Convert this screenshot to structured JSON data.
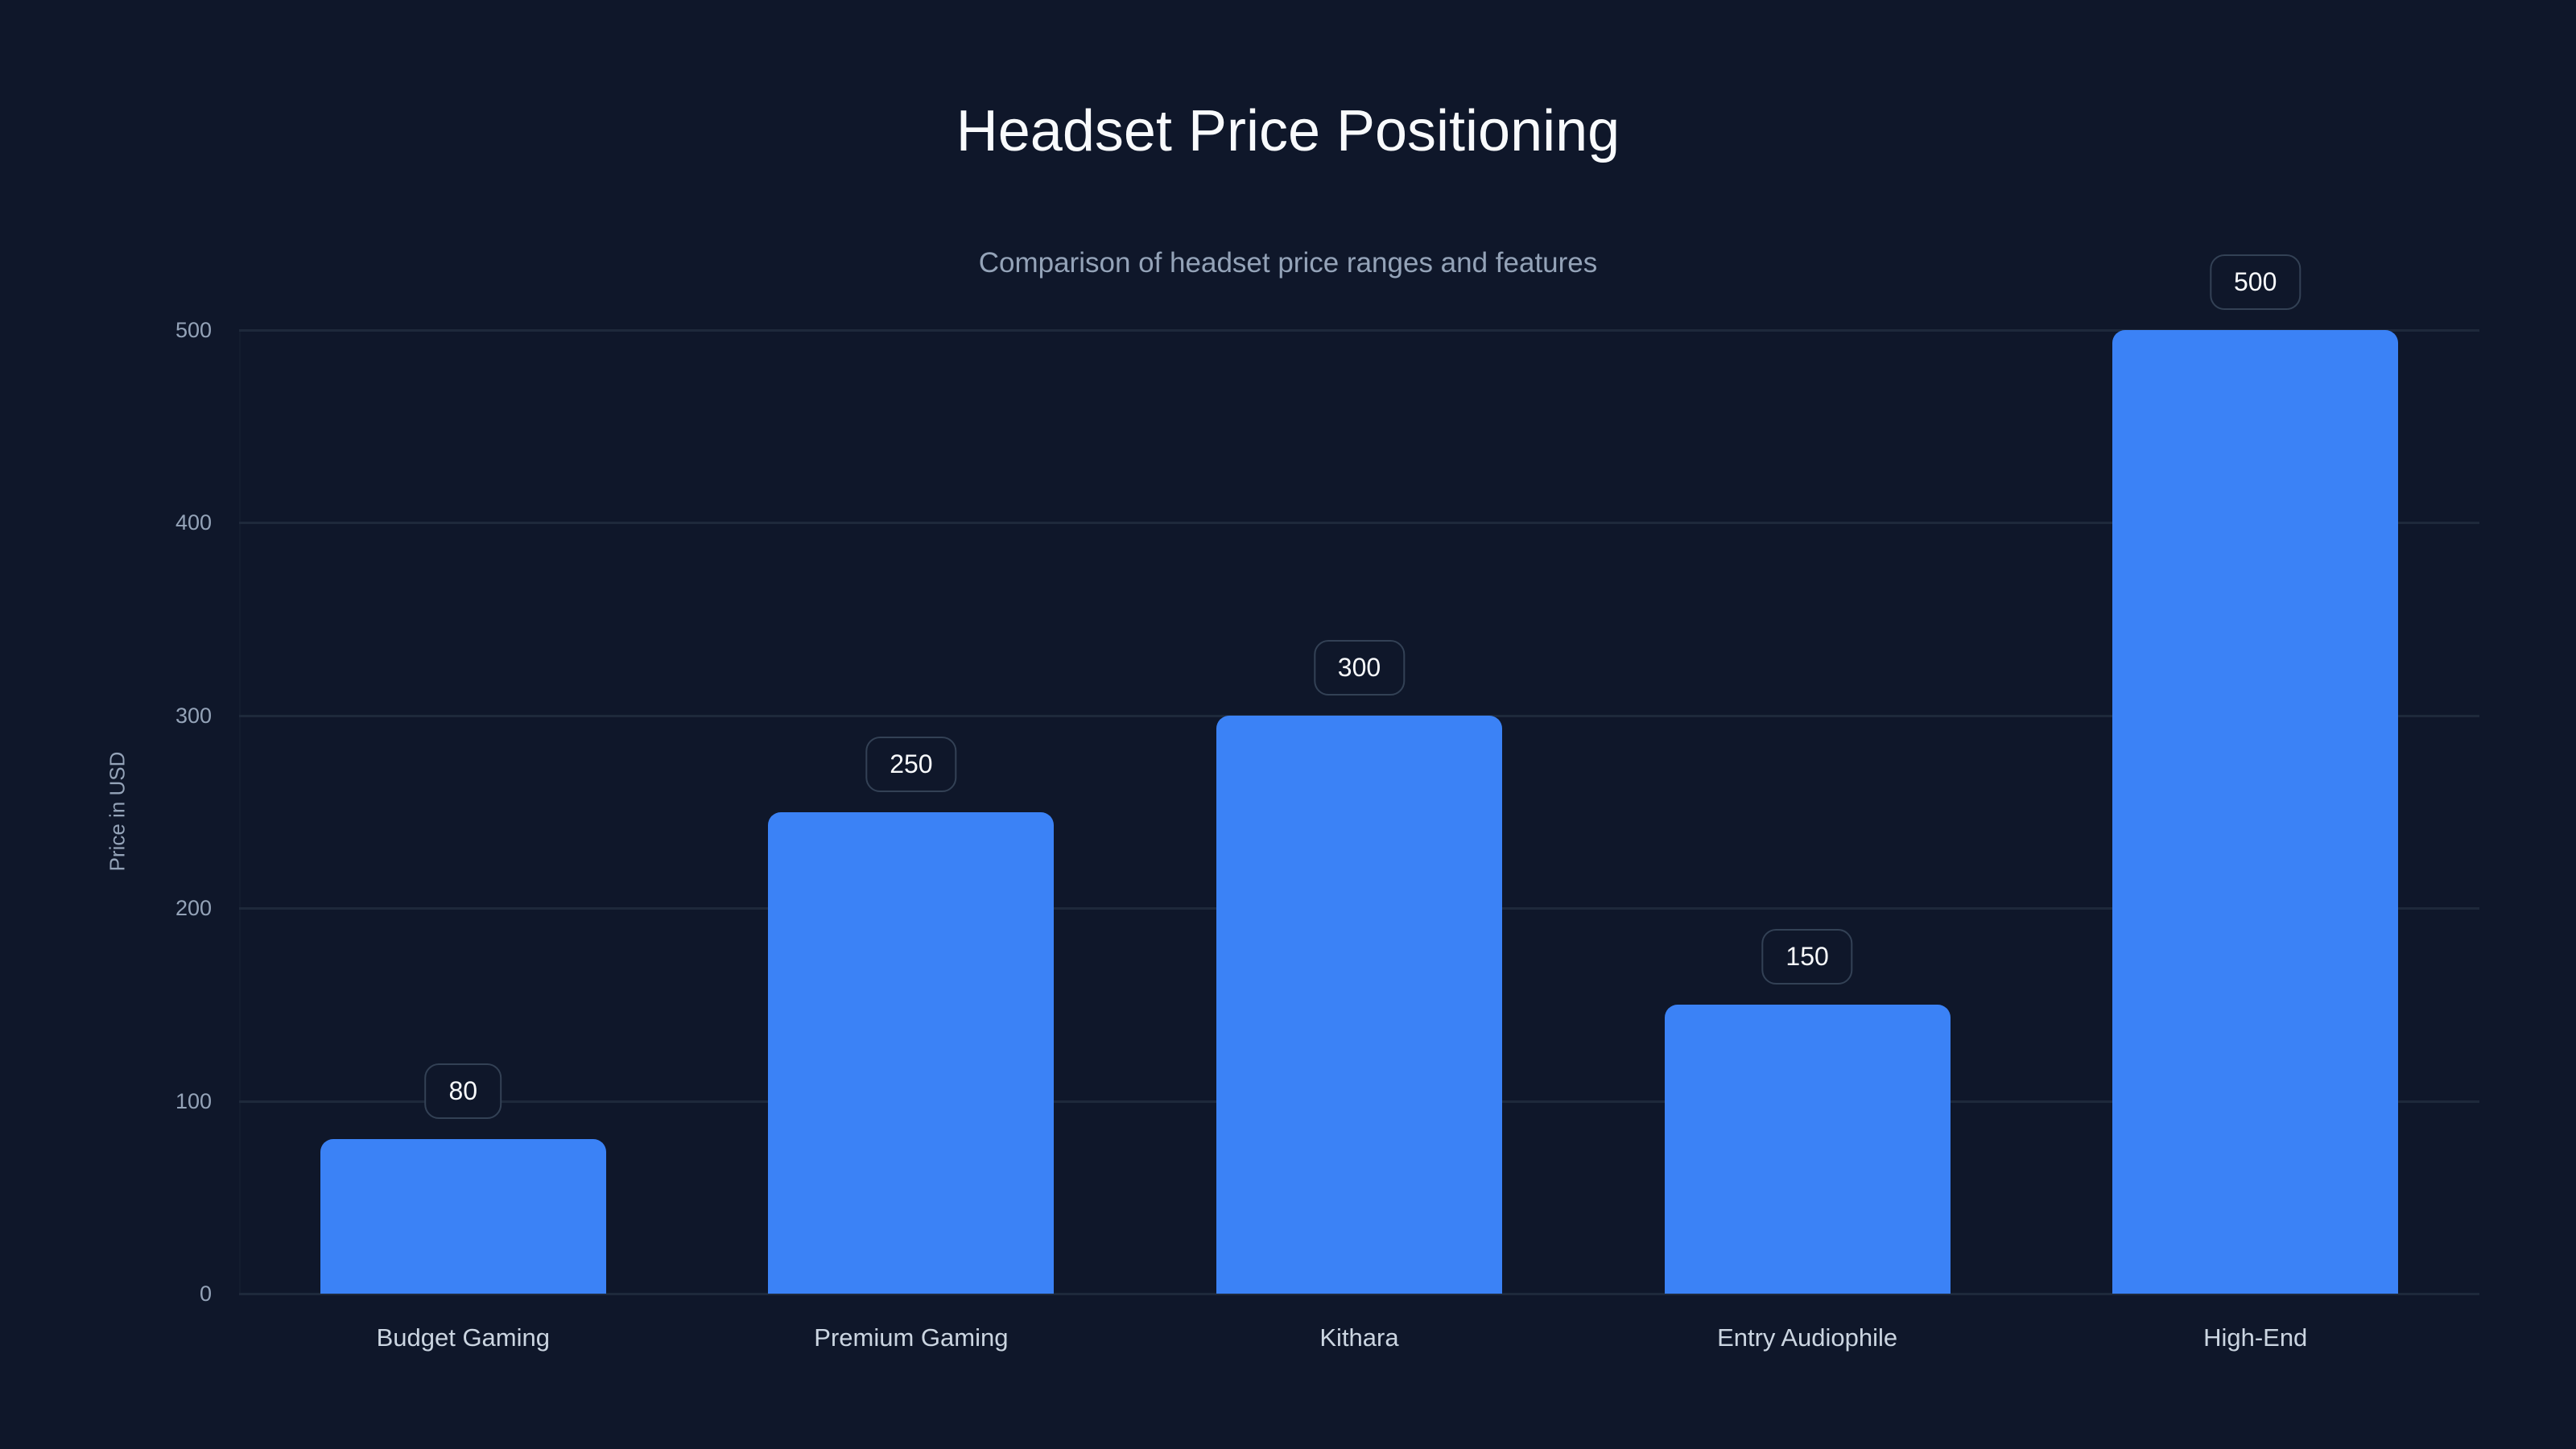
{
  "chart_data": {
    "type": "bar",
    "title": "Headset Price Positioning",
    "subtitle": "Comparison of headset price ranges and features",
    "xlabel": "",
    "ylabel": "Price in USD",
    "categories": [
      "Budget Gaming",
      "Premium Gaming",
      "Kithara",
      "Entry Audiophile",
      "High-End"
    ],
    "values": [
      80,
      250,
      300,
      150,
      500
    ],
    "ylim": [
      0,
      500
    ],
    "yticks": [
      0,
      100,
      200,
      300,
      400,
      500
    ],
    "grid": true,
    "legend": null,
    "data_labels": [
      "80",
      "250",
      "300",
      "150",
      "500"
    ],
    "colors": {
      "background": "#0f172a",
      "bar": "#3b82f6",
      "grid": "#1e293b",
      "label_border": "#334155",
      "title": "#f8fafc",
      "muted_text": "#94a3b8",
      "category_text": "#cbd5e1"
    }
  }
}
